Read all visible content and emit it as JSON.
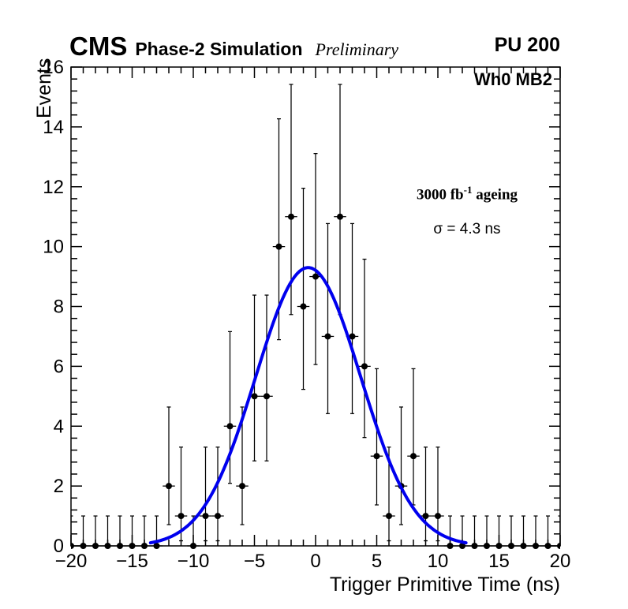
{
  "header": {
    "experiment": "CMS",
    "label": "Phase-2 Simulation",
    "sublabel": "Preliminary",
    "right_label": "PU 200"
  },
  "annotations": {
    "chamber": "Wh0 MB2",
    "lumi_prefix": "3000 fb",
    "lumi_sup": "-1",
    "lumi_suffix": " ageing",
    "sigma": "σ = 4.3 ns"
  },
  "colors": {
    "fit": "#0000ee",
    "marker": "#000000",
    "axis": "#000000",
    "background": "#ffffff"
  },
  "chart_data": {
    "type": "scatter",
    "title": "",
    "xlabel": "Trigger Primitive Time (ns)",
    "ylabel": "Events",
    "xlim": [
      -20,
      20
    ],
    "ylim": [
      0,
      16
    ],
    "grid": false,
    "legend": "none",
    "x_minor_step": 1,
    "y_minor_step": 0.4,
    "x_ticks": [
      {
        "v": -20,
        "label": "−20"
      },
      {
        "v": -15,
        "label": "−15"
      },
      {
        "v": -10,
        "label": "−10"
      },
      {
        "v": -5,
        "label": "−5"
      },
      {
        "v": 0,
        "label": "0"
      },
      {
        "v": 5,
        "label": "5"
      },
      {
        "v": 10,
        "label": "10"
      },
      {
        "v": 15,
        "label": "15"
      },
      {
        "v": 20,
        "label": "20"
      }
    ],
    "y_ticks": [
      {
        "v": 0,
        "label": "0"
      },
      {
        "v": 2,
        "label": "2"
      },
      {
        "v": 4,
        "label": "4"
      },
      {
        "v": 6,
        "label": "6"
      },
      {
        "v": 8,
        "label": "8"
      },
      {
        "v": 10,
        "label": "10"
      },
      {
        "v": 12,
        "label": "12"
      },
      {
        "v": 14,
        "label": "14"
      },
      {
        "v": 16,
        "label": "16"
      }
    ],
    "points": [
      {
        "x": -20,
        "y": 0,
        "lo": 0,
        "hi": 1.0
      },
      {
        "x": -19,
        "y": 0,
        "lo": 0,
        "hi": 1.0
      },
      {
        "x": -18,
        "y": 0,
        "lo": 0,
        "hi": 1.0
      },
      {
        "x": -17,
        "y": 0,
        "lo": 0,
        "hi": 1.0
      },
      {
        "x": -16,
        "y": 0,
        "lo": 0,
        "hi": 1.0
      },
      {
        "x": -15,
        "y": 0,
        "lo": 0,
        "hi": 1.0
      },
      {
        "x": -14,
        "y": 0,
        "lo": 0,
        "hi": 1.0
      },
      {
        "x": -13,
        "y": 0,
        "lo": 0,
        "hi": 1.0
      },
      {
        "x": -12,
        "y": 2,
        "lo": 0.71,
        "hi": 4.64
      },
      {
        "x": -11,
        "y": 1,
        "lo": 0.17,
        "hi": 3.3
      },
      {
        "x": -10,
        "y": 0,
        "lo": 0,
        "hi": 1.0
      },
      {
        "x": -9,
        "y": 1,
        "lo": 0.17,
        "hi": 3.3
      },
      {
        "x": -8,
        "y": 1,
        "lo": 0.17,
        "hi": 3.3
      },
      {
        "x": -7,
        "y": 4,
        "lo": 2.09,
        "hi": 7.16
      },
      {
        "x": -6,
        "y": 2,
        "lo": 0.71,
        "hi": 4.64
      },
      {
        "x": -5,
        "y": 5,
        "lo": 2.84,
        "hi": 8.38
      },
      {
        "x": -4,
        "y": 5,
        "lo": 2.84,
        "hi": 8.38
      },
      {
        "x": -3,
        "y": 10,
        "lo": 6.89,
        "hi": 14.27
      },
      {
        "x": -2,
        "y": 11,
        "lo": 7.73,
        "hi": 15.42
      },
      {
        "x": -1,
        "y": 8,
        "lo": 5.23,
        "hi": 11.95
      },
      {
        "x": 0,
        "y": 9,
        "lo": 6.06,
        "hi": 13.11
      },
      {
        "x": 1,
        "y": 7,
        "lo": 4.42,
        "hi": 10.77
      },
      {
        "x": 2,
        "y": 11,
        "lo": 7.73,
        "hi": 15.42
      },
      {
        "x": 3,
        "y": 7,
        "lo": 4.42,
        "hi": 10.77
      },
      {
        "x": 4,
        "y": 6,
        "lo": 3.62,
        "hi": 9.58
      },
      {
        "x": 5,
        "y": 3,
        "lo": 1.37,
        "hi": 5.92
      },
      {
        "x": 6,
        "y": 1,
        "lo": 0.17,
        "hi": 3.3
      },
      {
        "x": 7,
        "y": 2,
        "lo": 0.71,
        "hi": 4.64
      },
      {
        "x": 8,
        "y": 3,
        "lo": 1.37,
        "hi": 5.92
      },
      {
        "x": 9,
        "y": 1,
        "lo": 0.17,
        "hi": 3.3
      },
      {
        "x": 10,
        "y": 1,
        "lo": 0.17,
        "hi": 3.3
      },
      {
        "x": 11,
        "y": 0,
        "lo": 0,
        "hi": 1.0
      },
      {
        "x": 12,
        "y": 0,
        "lo": 0,
        "hi": 1.0
      },
      {
        "x": 13,
        "y": 0,
        "lo": 0,
        "hi": 1.0
      },
      {
        "x": 14,
        "y": 0,
        "lo": 0,
        "hi": 1.0
      },
      {
        "x": 15,
        "y": 0,
        "lo": 0,
        "hi": 1.0
      },
      {
        "x": 16,
        "y": 0,
        "lo": 0,
        "hi": 1.0
      },
      {
        "x": 17,
        "y": 0,
        "lo": 0,
        "hi": 1.0
      },
      {
        "x": 18,
        "y": 0,
        "lo": 0,
        "hi": 1.0
      },
      {
        "x": 19,
        "y": 0,
        "lo": 0,
        "hi": 1.0
      },
      {
        "x": 20,
        "y": 0,
        "lo": 0,
        "hi": 1.0
      }
    ],
    "x_bin_half_width": 0.5,
    "fit": {
      "shape": "gaussian",
      "amplitude": 9.3,
      "mean": -0.6,
      "sigma_ns": 4.3,
      "range": [
        -13.5,
        12.3
      ],
      "color": "#0000ee",
      "line_width": 4,
      "label": "σ = 4.3 ns"
    }
  }
}
